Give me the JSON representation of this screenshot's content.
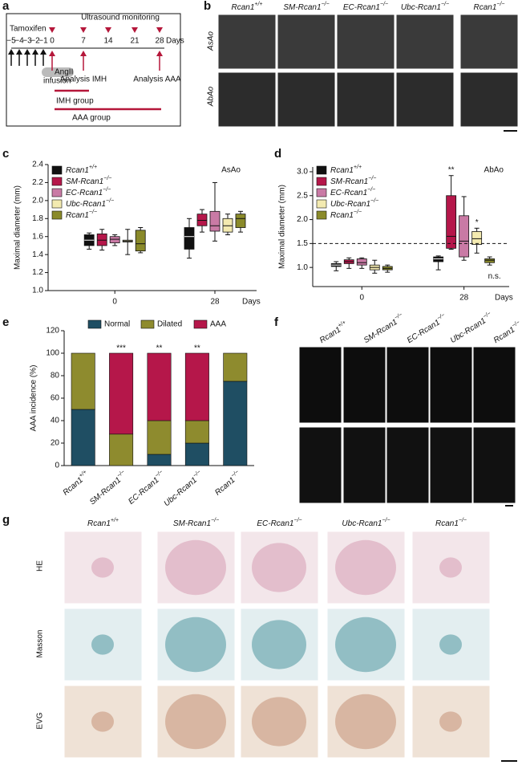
{
  "panel_labels": [
    "a",
    "b",
    "c",
    "d",
    "e",
    "f",
    "g"
  ],
  "timeline": {
    "treatment": "Tamoxifen",
    "monitoring": "Ultrasound monitoring",
    "days": [
      "−5",
      "−4",
      "−3",
      "−2",
      "−1",
      "0",
      "7",
      "14",
      "21",
      "28"
    ],
    "unit": "Days",
    "infusion_drug": "AngII",
    "infusion": "infusion",
    "analysis_imh": "Analysis IMH",
    "analysis_aaa": "Analysis AAA",
    "groups": [
      "IMH group",
      "AAA group"
    ]
  },
  "ultrasound": {
    "columns": [
      "Rcan1+/+",
      "SM-Rcan1−/−",
      "EC-Rcan1−/−",
      "Ubc-Rcan1−/−",
      "Rcan1−/−"
    ],
    "rows": [
      "AsAo",
      "AbAo"
    ]
  },
  "chart_data": [
    {
      "type": "box",
      "title": "AsAo",
      "y_label": "Maximal diameter (mm)",
      "x_label": "Days",
      "categories": [
        "0",
        "28"
      ],
      "ylim": [
        1.0,
        2.4
      ],
      "yticks": [
        {
          "value": 1.0,
          "label": "1.0"
        },
        1.2,
        1.4,
        1.6,
        1.8,
        {
          "value": 2.0,
          "label": "2.0"
        },
        2.2,
        2.4
      ],
      "series": [
        {
          "name": "Rcan1+/+",
          "color": "#111111",
          "values": [
            {
              "min": 1.46,
              "q1": 1.5,
              "median": 1.56,
              "q3": 1.62,
              "max": 1.64
            },
            {
              "min": 1.36,
              "q1": 1.46,
              "median": 1.6,
              "q3": 1.7,
              "max": 1.8
            }
          ]
        },
        {
          "name": "SM-Rcan1−/−",
          "color": "#b5174a",
          "values": [
            {
              "min": 1.45,
              "q1": 1.5,
              "median": 1.56,
              "q3": 1.63,
              "max": 1.68
            },
            {
              "min": 1.65,
              "q1": 1.72,
              "median": 1.78,
              "q3": 1.85,
              "max": 1.9
            }
          ]
        },
        {
          "name": "EC-Rcan1−/−",
          "color": "#c97aa5",
          "values": [
            {
              "min": 1.5,
              "q1": 1.53,
              "median": 1.57,
              "q3": 1.6,
              "max": 1.62
            },
            {
              "min": 1.55,
              "q1": 1.66,
              "median": 1.72,
              "q3": 1.88,
              "max": 2.2
            }
          ]
        },
        {
          "name": "Ubc-Rcan1−/−",
          "color": "#f3eab0",
          "values": [
            {
              "min": 1.4,
              "q1": 1.54,
              "median": 1.55,
              "q3": 1.56,
              "max": 1.68
            },
            {
              "min": 1.62,
              "q1": 1.65,
              "median": 1.72,
              "q3": 1.8,
              "max": 1.85
            }
          ]
        },
        {
          "name": "Rcan1−/−",
          "color": "#8a8a2a",
          "values": [
            {
              "min": 1.42,
              "q1": 1.44,
              "median": 1.52,
              "q3": 1.67,
              "max": 1.7
            },
            {
              "min": 1.65,
              "q1": 1.7,
              "median": 1.8,
              "q3": 1.85,
              "max": 1.88
            }
          ]
        }
      ]
    },
    {
      "type": "box",
      "title": "AbAo",
      "y_label": "Maximal diameter (mm)",
      "x_label": "Days",
      "categories": [
        "0",
        "28"
      ],
      "ylim": [
        0.6,
        3.1
      ],
      "yticks": [
        {
          "value": 1.0,
          "label": "1.0"
        },
        1.5,
        {
          "value": 2.0,
          "label": "2.0"
        },
        2.5,
        {
          "value": 3.0,
          "label": "3.0"
        }
      ],
      "threshold": 1.5,
      "series": [
        {
          "name": "Rcan1+/+",
          "color": "#111111",
          "values": [
            {
              "min": 0.93,
              "q1": 1.02,
              "median": 1.05,
              "q3": 1.08,
              "max": 1.12
            },
            {
              "min": 0.95,
              "q1": 1.12,
              "median": 1.18,
              "q3": 1.22,
              "max": 1.24
            }
          ],
          "annotations": [
            null,
            null
          ]
        },
        {
          "name": "SM-Rcan1−/−",
          "color": "#b5174a",
          "values": [
            {
              "min": 0.98,
              "q1": 1.08,
              "median": 1.12,
              "q3": 1.16,
              "max": 1.2
            },
            {
              "min": 1.38,
              "q1": 1.4,
              "median": 1.65,
              "q3": 2.5,
              "max": 2.92
            }
          ],
          "annotations": [
            null,
            "**"
          ]
        },
        {
          "name": "EC-Rcan1−/−",
          "color": "#c97aa5",
          "values": [
            {
              "min": 0.98,
              "q1": 1.05,
              "median": 1.1,
              "q3": 1.18,
              "max": 1.2
            },
            {
              "min": 1.15,
              "q1": 1.22,
              "median": 1.55,
              "q3": 2.08,
              "max": 2.48
            }
          ],
          "annotations": [
            null,
            null
          ]
        },
        {
          "name": "Ubc-Rcan1−/−",
          "color": "#f3eab0",
          "values": [
            {
              "min": 0.88,
              "q1": 0.95,
              "median": 1.0,
              "q3": 1.05,
              "max": 1.15
            },
            {
              "min": 1.3,
              "q1": 1.48,
              "median": 1.6,
              "q3": 1.75,
              "max": 1.82
            }
          ],
          "annotations": [
            null,
            "*"
          ]
        },
        {
          "name": "Rcan1−/−",
          "color": "#8a8a2a",
          "values": [
            {
              "min": 0.9,
              "q1": 0.95,
              "median": 0.98,
              "q3": 1.02,
              "max": 1.05
            },
            {
              "min": 1.05,
              "q1": 1.1,
              "median": 1.15,
              "q3": 1.18,
              "max": 1.22
            }
          ],
          "annotations": [
            null,
            "n.s."
          ]
        }
      ]
    },
    {
      "type": "stacked_bar",
      "y_label": "AAA incidence (%)",
      "categories": [
        "Rcan1+/+",
        "SM-Rcan1−/−",
        "EC-Rcan1−/−",
        "Ubc-Rcan1−/−",
        "Rcan1−/−"
      ],
      "ylim": [
        0,
        120
      ],
      "yticks": [
        0,
        20,
        40,
        60,
        80,
        100,
        120
      ],
      "annotations": [
        null,
        "***",
        "**",
        "**",
        null
      ],
      "series": [
        {
          "name": "Normal",
          "color": "#1f4e63",
          "values": [
            50,
            0,
            10,
            20,
            75
          ]
        },
        {
          "name": "Dilated",
          "color": "#8e8b2e",
          "values": [
            50,
            28,
            30,
            20,
            25
          ]
        },
        {
          "name": "AAA",
          "color": "#b5174a",
          "values": [
            0,
            72,
            60,
            60,
            0
          ]
        }
      ]
    }
  ],
  "photos": {
    "columns": [
      "Rcan1+/+",
      "SM-Rcan1−/−",
      "EC-Rcan1−/−",
      "Ubc-Rcan1−/−",
      "Rcan1−/−"
    ]
  },
  "histology": {
    "columns": [
      "Rcan1+/+",
      "SM-Rcan1−/−",
      "EC-Rcan1−/−",
      "Ubc-Rcan1−/−",
      "Rcan1−/−"
    ],
    "rows": [
      "HE",
      "Masson",
      "EVG"
    ]
  }
}
